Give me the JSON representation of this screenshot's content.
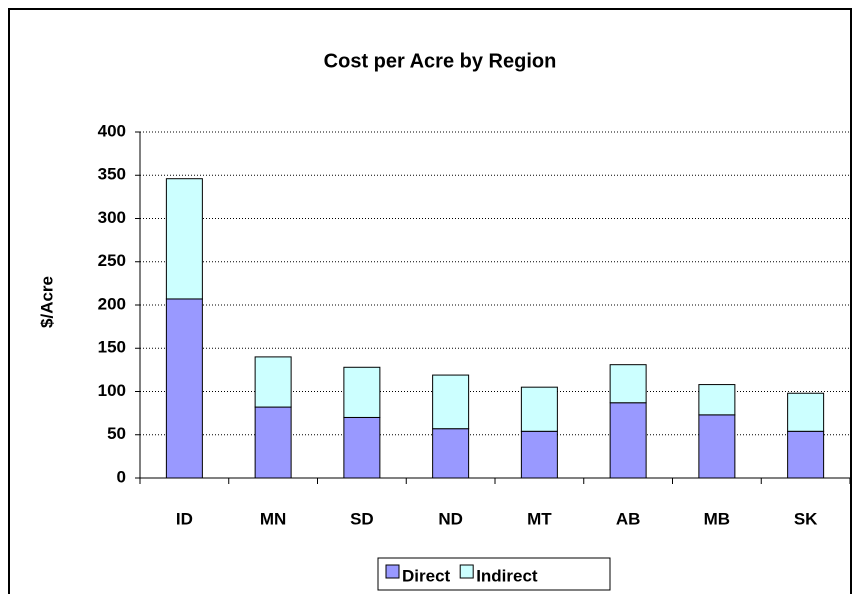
{
  "chart_data": {
    "type": "stacked_bar",
    "title": "Cost per Acre by Region",
    "y_label": "$/Acre",
    "categories": [
      "ID",
      "MN",
      "SD",
      "ND",
      "MT",
      "AB",
      "MB",
      "SK"
    ],
    "series": [
      {
        "name": "Direct",
        "color": "#9999ff",
        "values": [
          207,
          82,
          70,
          57,
          54,
          87,
          73,
          54
        ]
      },
      {
        "name": "Indirect",
        "color": "#ccffff",
        "values": [
          139,
          58,
          58,
          62,
          51,
          44,
          35,
          44
        ]
      }
    ],
    "ylim": [
      0,
      400
    ],
    "yticks": [
      0,
      50,
      100,
      150,
      200,
      250,
      300,
      350,
      400
    ],
    "grid": true,
    "legend": "bottom"
  }
}
